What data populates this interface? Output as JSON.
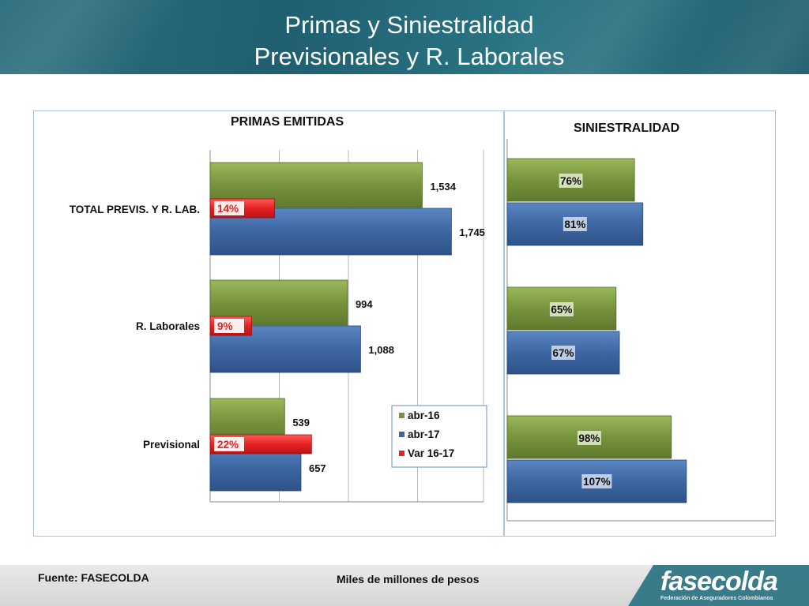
{
  "header": {
    "title_line1": "Primas  y Siniestralidad",
    "title_line2": "Previsionales  y R. Laborales"
  },
  "footer": {
    "source": "Fuente: FASECOLDA",
    "units": "Miles de millones de pesos",
    "logo_text": "fasecolda",
    "logo_subtitle": "Federación de Aseguradores Colombianos"
  },
  "colors": {
    "header_teal": "#23677a",
    "abr16_green": "#77933c",
    "abr17_blue": "#3d67a3",
    "var_red": "#e52222",
    "frame_border": "#a9c4dd"
  },
  "chart_data": [
    {
      "type": "bar",
      "orientation": "horizontal",
      "title": "PRIMAS  EMITIDAS",
      "categories": [
        "TOTAL  PREVIS. Y R. LAB.",
        "R. Laborales",
        "Previsional"
      ],
      "series": [
        {
          "name": "abr-16",
          "values": [
            1534,
            994,
            539
          ],
          "labels": [
            "1,534",
            "994",
            "539"
          ]
        },
        {
          "name": "abr-17",
          "values": [
            1745,
            1088,
            657
          ],
          "labels": [
            "1,745",
            "1,088",
            "657"
          ]
        },
        {
          "name": "Var 16-17",
          "values": [
            14,
            9,
            22
          ],
          "labels": [
            "14%",
            "9%",
            "22%"
          ]
        }
      ],
      "xlim": [
        0,
        2000
      ],
      "var_scale_max_percent": 60,
      "grid": true,
      "legend": {
        "placement": "bottom-right",
        "entries": [
          "abr-16",
          "abr-17",
          "Var 16-17"
        ]
      }
    },
    {
      "type": "bar",
      "orientation": "horizontal",
      "title": "SINIESTRALIDAD",
      "categories": [
        "TOTAL  PREVIS. Y R. LAB.",
        "R. Laborales",
        "Previsional"
      ],
      "series": [
        {
          "name": "abr-16",
          "values": [
            76,
            65,
            98
          ],
          "labels": [
            "76%",
            "65%",
            "98%"
          ]
        },
        {
          "name": "abr-17",
          "values": [
            81,
            67,
            107
          ],
          "labels": [
            "81%",
            "67%",
            "107%"
          ]
        }
      ],
      "xlim": [
        0,
        150
      ],
      "grid": false
    }
  ]
}
